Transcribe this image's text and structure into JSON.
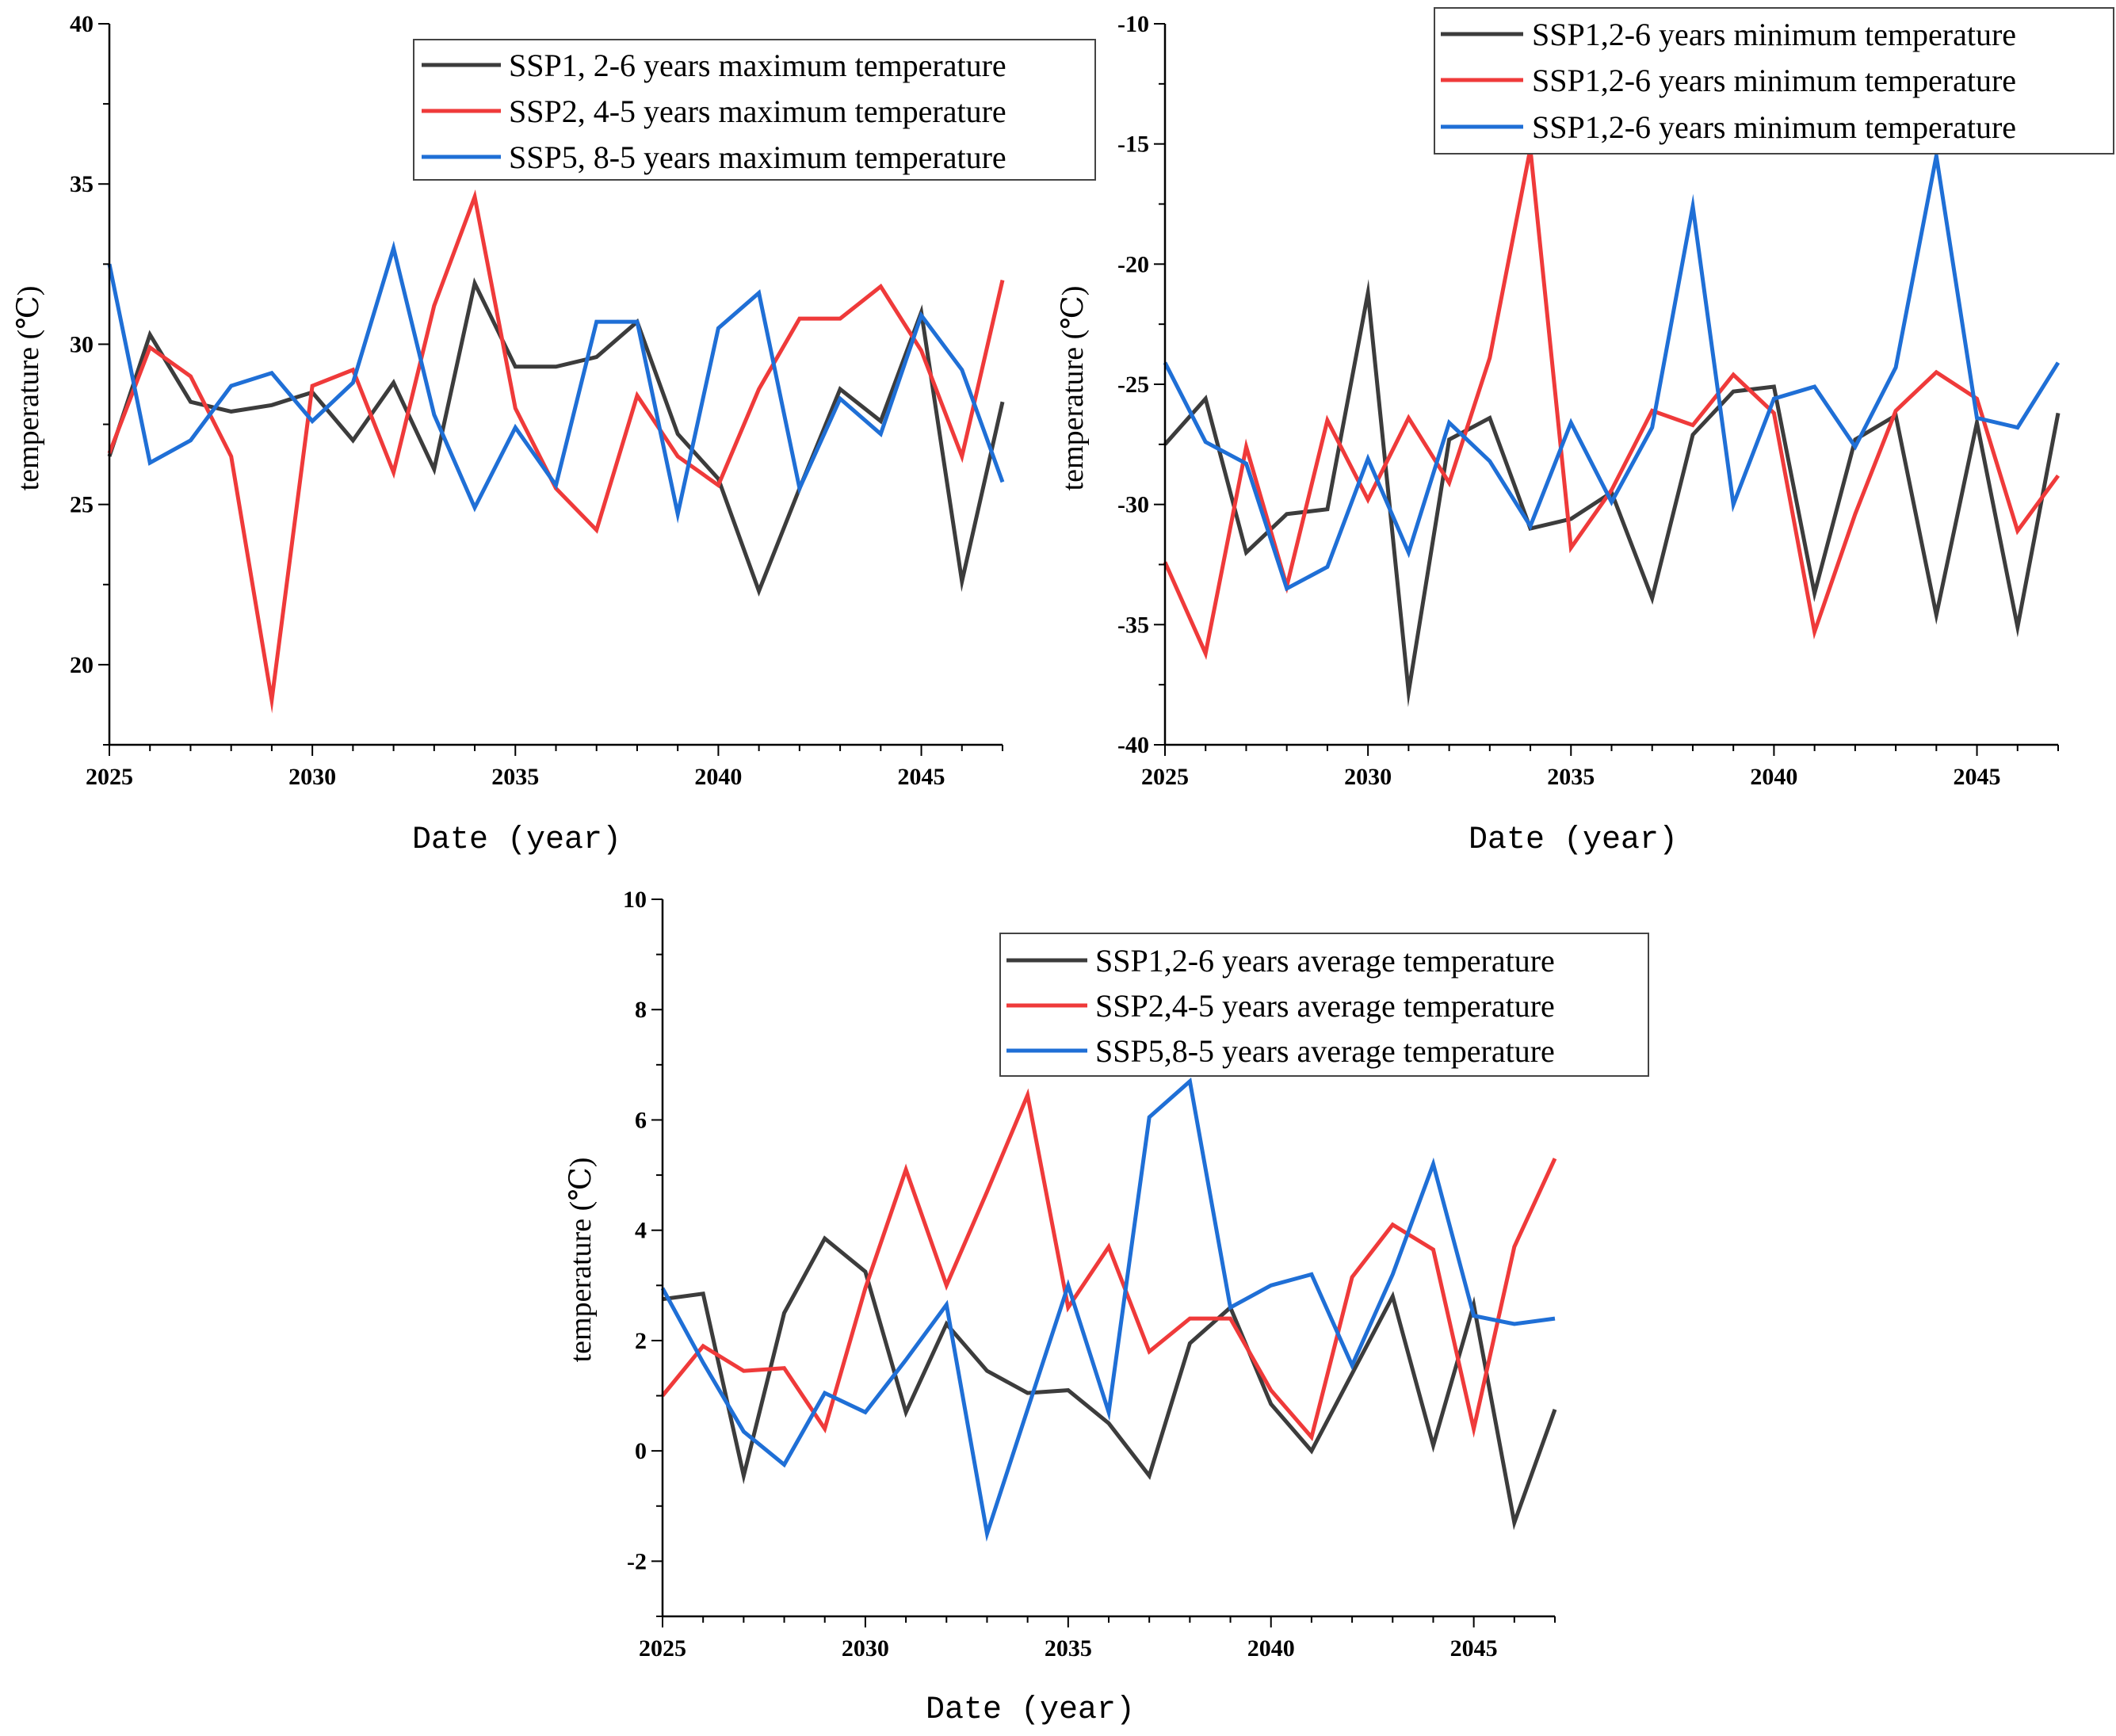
{
  "chart_data": [
    {
      "type": "line",
      "id": "max",
      "title": "",
      "xlabel": "Date (year)",
      "ylabel": "temperature (℃)",
      "xlim": [
        2025,
        2047
      ],
      "ylim": [
        17.5,
        40
      ],
      "xticks": [
        2025,
        2030,
        2035,
        2040,
        2045
      ],
      "yticks": [
        20,
        25,
        30,
        35,
        40
      ],
      "x": [
        2025,
        2026,
        2027,
        2028,
        2029,
        2030,
        2031,
        2032,
        2033,
        2034,
        2035,
        2036,
        2037,
        2038,
        2039,
        2040,
        2041,
        2042,
        2043,
        2044,
        2045,
        2046,
        2047
      ],
      "legend_position": "top-right",
      "series": [
        {
          "name": "SSP1, 2-6 years maximum temperature",
          "color": "#3c3c3c",
          "values": [
            26.5,
            30.3,
            28.2,
            27.9,
            28.1,
            28.5,
            27.0,
            28.8,
            26.1,
            31.9,
            29.3,
            29.3,
            29.6,
            30.7,
            27.2,
            25.8,
            22.3,
            25.5,
            28.6,
            27.6,
            31.0,
            22.6,
            28.2
          ]
        },
        {
          "name": "SSP2, 4-5 years maximum temperature",
          "color": "#ef3a3a",
          "values": [
            26.6,
            29.9,
            29.0,
            26.5,
            18.9,
            28.7,
            29.2,
            26.0,
            31.2,
            34.6,
            28.0,
            25.5,
            24.2,
            28.4,
            26.5,
            25.6,
            28.6,
            30.8,
            30.8,
            31.8,
            29.8,
            26.5,
            32.0
          ]
        },
        {
          "name": "SSP5, 8-5 years maximum temperature",
          "color": "#1f6fd6",
          "values": [
            32.5,
            26.3,
            27.0,
            28.7,
            29.1,
            27.6,
            28.8,
            33.0,
            27.8,
            24.9,
            27.4,
            25.6,
            30.7,
            30.7,
            24.7,
            30.5,
            31.6,
            25.5,
            28.3,
            27.2,
            30.9,
            29.2,
            25.7
          ]
        }
      ]
    },
    {
      "type": "line",
      "id": "min",
      "title": "",
      "xlabel": "Date (year)",
      "ylabel": "temperature (℃)",
      "xlim": [
        2025,
        2047
      ],
      "ylim": [
        -40,
        -10
      ],
      "xticks": [
        2025,
        2030,
        2035,
        2040,
        2045
      ],
      "yticks": [
        -40,
        -35,
        -30,
        -25,
        -20,
        -15,
        -10
      ],
      "x": [
        2025,
        2026,
        2027,
        2028,
        2029,
        2030,
        2031,
        2032,
        2033,
        2034,
        2035,
        2036,
        2037,
        2038,
        2039,
        2040,
        2041,
        2042,
        2043,
        2044,
        2045,
        2046,
        2047
      ],
      "legend_position": "top-right",
      "series": [
        {
          "name": "SSP1,2-6 years minimum temperature",
          "color": "#3c3c3c",
          "values": [
            -27.5,
            -25.6,
            -32.0,
            -30.4,
            -30.2,
            -21.2,
            -37.8,
            -27.3,
            -26.4,
            -31.0,
            -30.6,
            -29.5,
            -33.9,
            -27.1,
            -25.3,
            -25.1,
            -33.7,
            -27.3,
            -26.3,
            -34.6,
            -26.6,
            -35.1,
            -26.2
          ]
        },
        {
          "name": "SSP1,2-6 years minimum temperature",
          "color": "#ef3a3a",
          "values": [
            -32.4,
            -36.2,
            -27.6,
            -33.4,
            -26.5,
            -29.8,
            -26.4,
            -29.1,
            -23.9,
            -15.2,
            -31.8,
            -29.4,
            -26.1,
            -26.7,
            -24.6,
            -26.2,
            -35.3,
            -30.4,
            -26.1,
            -24.5,
            -25.6,
            -31.1,
            -28.8
          ]
        },
        {
          "name": "SSP1,2-6 years minimum temperature",
          "color": "#1f6fd6",
          "values": [
            -24.1,
            -27.4,
            -28.3,
            -33.5,
            -32.6,
            -28.1,
            -32.0,
            -26.6,
            -28.2,
            -30.9,
            -26.6,
            -29.9,
            -26.8,
            -17.6,
            -30.0,
            -25.6,
            -25.1,
            -27.6,
            -24.3,
            -15.5,
            -26.4,
            -26.8,
            -24.1
          ]
        }
      ]
    },
    {
      "type": "line",
      "id": "avg",
      "title": "",
      "xlabel": "Date (year)",
      "ylabel": "temperature (℃)",
      "xlim": [
        2025,
        2047
      ],
      "ylim": [
        -3,
        10
      ],
      "xticks": [
        2025,
        2030,
        2035,
        2040,
        2045
      ],
      "yticks": [
        -2,
        0,
        2,
        4,
        6,
        8,
        10
      ],
      "x": [
        2025,
        2026,
        2027,
        2028,
        2029,
        2030,
        2031,
        2032,
        2033,
        2034,
        2035,
        2036,
        2037,
        2038,
        2039,
        2040,
        2041,
        2042,
        2043,
        2044,
        2045,
        2046,
        2047
      ],
      "legend_position": "top-right",
      "series": [
        {
          "name": "SSP1,2-6 years average temperature",
          "color": "#3c3c3c",
          "values": [
            2.75,
            2.85,
            -0.45,
            2.5,
            3.85,
            3.25,
            0.7,
            2.3,
            1.45,
            1.05,
            1.1,
            0.5,
            -0.45,
            1.95,
            2.6,
            0.85,
            0.0,
            1.4,
            2.8,
            0.1,
            2.65,
            -1.3,
            0.75
          ]
        },
        {
          "name": "SSP2,4-5 years average temperature",
          "color": "#ef3a3a",
          "values": [
            1.0,
            1.9,
            1.45,
            1.5,
            0.4,
            2.95,
            5.1,
            3.0,
            4.7,
            6.45,
            2.6,
            3.7,
            1.8,
            2.4,
            2.4,
            1.1,
            0.25,
            3.15,
            4.1,
            3.65,
            0.4,
            3.7,
            5.3
          ]
        },
        {
          "name": "SSP5,8-5 years average temperature",
          "color": "#1f6fd6",
          "values": [
            2.95,
            1.6,
            0.35,
            -0.25,
            1.05,
            0.7,
            1.65,
            2.65,
            -1.5,
            0.75,
            3.0,
            0.7,
            6.05,
            6.7,
            2.6,
            3.0,
            3.2,
            1.55,
            3.2,
            5.2,
            2.45,
            2.3,
            2.4
          ]
        }
      ]
    }
  ]
}
